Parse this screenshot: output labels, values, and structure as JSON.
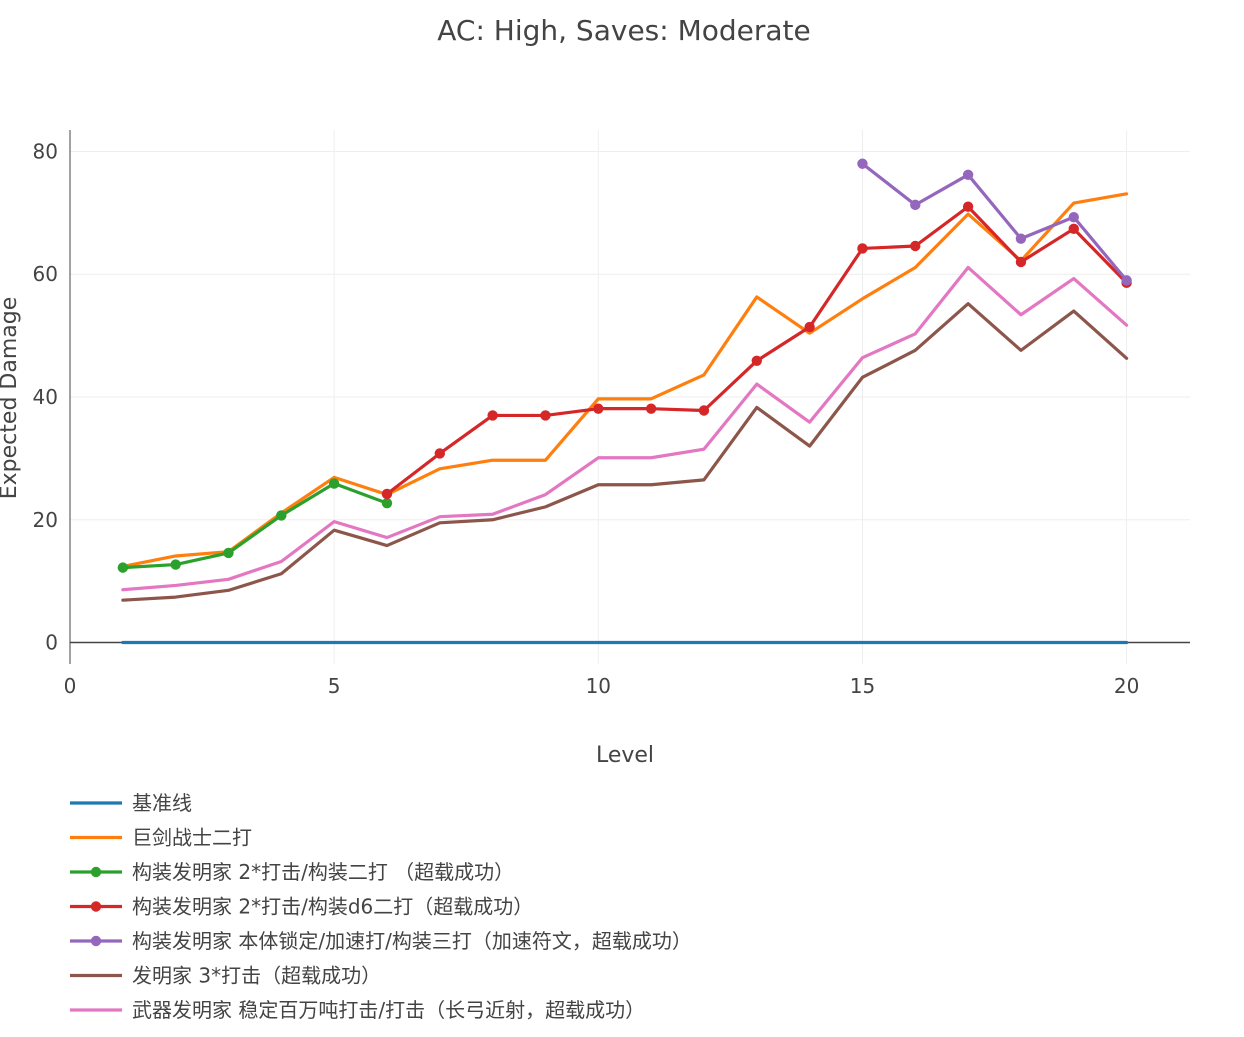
{
  "chart_data": {
    "type": "line",
    "title": "AC: High, Saves: Moderate",
    "xlabel": "Level",
    "ylabel": "Expected Damage",
    "xlim": [
      0,
      21.2
    ],
    "ylim": [
      -3.5,
      83.5
    ],
    "xticks": [
      0,
      5,
      10,
      15,
      20
    ],
    "yticks": [
      0,
      20,
      40,
      60,
      80
    ],
    "grid": true,
    "legend_position": "bottom-left",
    "series": [
      {
        "name": "基准线",
        "color": "#1f77b4",
        "markers": false,
        "x": [
          1,
          2,
          3,
          4,
          5,
          6,
          7,
          8,
          9,
          10,
          11,
          12,
          13,
          14,
          15,
          16,
          17,
          18,
          19,
          20
        ],
        "y": [
          0,
          0,
          0,
          0,
          0,
          0,
          0,
          0,
          0,
          0,
          0,
          0,
          0,
          0,
          0,
          0,
          0,
          0,
          0,
          0
        ]
      },
      {
        "name": "巨剑战士二打",
        "color": "#ff7f0e",
        "markers": false,
        "x": [
          1,
          2,
          3,
          4,
          5,
          6,
          7,
          8,
          9,
          10,
          11,
          12,
          13,
          14,
          15,
          16,
          17,
          18,
          19,
          20
        ],
        "y": [
          12.4,
          14.1,
          14.8,
          21.1,
          26.9,
          24.1,
          28.3,
          29.7,
          29.7,
          39.7,
          39.7,
          43.6,
          56.3,
          50.4,
          56.0,
          61.1,
          69.8,
          62.2,
          71.6,
          73.1
        ]
      },
      {
        "name": "构装发明家 2*打击/构装二打 （超载成功）",
        "color": "#2ca02c",
        "markers": true,
        "x": [
          1,
          2,
          3,
          4,
          5,
          6
        ],
        "y": [
          12.2,
          12.7,
          14.6,
          20.7,
          25.9,
          22.7
        ]
      },
      {
        "name": "构装发明家 2*打击/构装d6二打（超载成功）",
        "color": "#d62728",
        "markers": true,
        "x": [
          6,
          7,
          8,
          9,
          10,
          11,
          12,
          13,
          14,
          15,
          16,
          17,
          18,
          19,
          20
        ],
        "y": [
          24.2,
          30.8,
          37.0,
          37.0,
          38.1,
          38.1,
          37.8,
          45.9,
          51.4,
          64.2,
          64.6,
          71.0,
          62.0,
          67.4,
          58.6
        ]
      },
      {
        "name": "构装发明家 本体锁定/加速打/构装三打（加速符文，超载成功）",
        "color": "#9467bd",
        "markers": true,
        "x": [
          15,
          16,
          17,
          18,
          19,
          20
        ],
        "y": [
          78.0,
          71.3,
          76.2,
          65.8,
          69.3,
          59.0
        ]
      },
      {
        "name": "发明家 3*打击（超载成功）",
        "color": "#8c564b",
        "markers": false,
        "x": [
          1,
          2,
          3,
          4,
          5,
          6,
          7,
          8,
          9,
          10,
          11,
          12,
          13,
          14,
          15,
          16,
          17,
          18,
          19,
          20
        ],
        "y": [
          6.9,
          7.4,
          8.5,
          11.2,
          18.3,
          15.8,
          19.5,
          20.0,
          22.1,
          25.7,
          25.7,
          26.5,
          38.3,
          32.0,
          43.2,
          47.6,
          55.2,
          47.6,
          54.0,
          46.3
        ]
      },
      {
        "name": "武器发明家 稳定百万吨打击/打击（长弓近射，超载成功）",
        "color": "#e377c2",
        "markers": false,
        "x": [
          1,
          2,
          3,
          4,
          5,
          6,
          7,
          8,
          9,
          10,
          11,
          12,
          13,
          14,
          15,
          16,
          17,
          18,
          19,
          20
        ],
        "y": [
          8.6,
          9.3,
          10.3,
          13.2,
          19.7,
          17.1,
          20.5,
          20.9,
          24.1,
          30.1,
          30.1,
          31.5,
          42.1,
          35.9,
          46.4,
          50.3,
          61.1,
          53.4,
          59.3,
          51.7
        ]
      }
    ]
  }
}
